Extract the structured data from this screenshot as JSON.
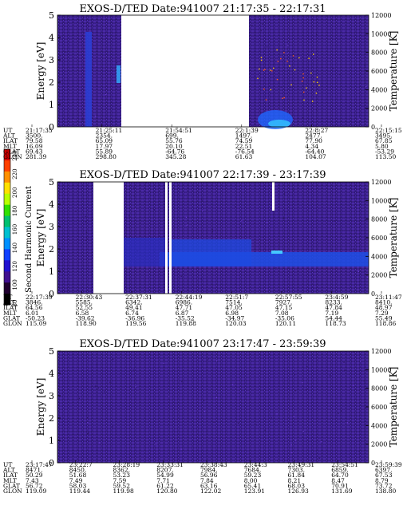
{
  "colors": {
    "background_spectrogram": "#3a1f8c",
    "accent_blue": "#1a55e8",
    "gap": "#ffffff"
  },
  "colorbar": {
    "label": "Second Harmonic Current",
    "ticks": [
      "240",
      "220",
      "200",
      "180",
      "160",
      "140",
      "120",
      "100",
      "80"
    ],
    "colors": [
      "#d00000",
      "#ff4000",
      "#ff9000",
      "#ffe000",
      "#b8ff00",
      "#30e000",
      "#00c070",
      "#00c0d0",
      "#0090ff",
      "#1040ff",
      "#2010d0",
      "#401090",
      "#200030",
      "#000000"
    ]
  },
  "chart_data": [
    {
      "type": "heatmap",
      "title": "EXOS-D/TED   Date:941007  21:17:35 - 22:17:31",
      "ylabel": "Energy [eV]",
      "y2label": "Temperature [K]",
      "ylim": [
        0,
        5
      ],
      "y2lim": [
        0,
        12000
      ],
      "yticks": [
        "0",
        "1",
        "2",
        "3",
        "4",
        "5"
      ],
      "y2ticks": [
        "0",
        "2000",
        "4000",
        "6000",
        "8000",
        "10000",
        "12000"
      ],
      "gaps_ut": [
        [
          "21:27:30",
          "21:54:51"
        ]
      ],
      "row_labels": [
        "UT",
        "ALT",
        "ILAT",
        "MLT",
        "GLAT",
        "GLON"
      ],
      "columns": [
        {
          "values": [
            "21:17:35",
            "3500.",
            "79.58",
            "16.09",
            "69.43",
            "281.39"
          ]
        },
        {
          "values": [
            "21:25:11",
            "2354.",
            "65.09",
            "17.97",
            "55.89",
            "298.80"
          ]
        },
        {
          "values": [
            "21:54:51",
            "699.",
            "55.76",
            "20.10",
            "-64.76",
            "345.28"
          ]
        },
        {
          "values": [
            "22:1:39",
            "1497.",
            "74.59",
            "22.51",
            "-76.54",
            "61.63"
          ]
        },
        {
          "values": [
            "22:8:27",
            "2477.",
            "77.90",
            "4.34",
            "-64.40",
            "104.07"
          ]
        },
        {
          "values": [
            "22:15:15",
            "3495.",
            "67.85",
            "5.80",
            "-53.29",
            "113.50"
          ]
        }
      ]
    },
    {
      "type": "heatmap",
      "title": "EXOS-D/TED   Date:941007  22:17:39 - 23:17:39",
      "ylabel": "Energy [eV]",
      "y2label": "Temperature [K]",
      "ylim": [
        0,
        5
      ],
      "y2lim": [
        0,
        12000
      ],
      "yticks": [
        "0",
        "1",
        "2",
        "3",
        "4",
        "5"
      ],
      "y2ticks": [
        "0",
        "2000",
        "4000",
        "6000",
        "8000",
        "10000",
        "12000"
      ],
      "row_labels": [
        "UT",
        "ALT",
        "ILAT",
        "MLT",
        "GLAT",
        "GLON"
      ],
      "columns": [
        {
          "values": [
            "22:17:39",
            "3846.",
            "64.56",
            "6.01",
            "-50.23",
            "115.09"
          ]
        },
        {
          "values": [
            "22:30:43",
            "5585.",
            "52.55",
            "6.58",
            "-39.62",
            "118.90"
          ]
        },
        {
          "values": [
            "22:37:31",
            "6342.",
            "49.41",
            "6.74",
            "-36.96",
            "119.56"
          ]
        },
        {
          "values": [
            "22:44:19",
            "6986.",
            "47.71",
            "6.87",
            "-35.52",
            "119.88"
          ]
        },
        {
          "values": [
            "22:51:7",
            "7514.",
            "47.05",
            "6.98",
            "-34.97",
            "120.03"
          ]
        },
        {
          "values": [
            "22:57:55",
            "7927.",
            "47.15",
            "7.08",
            "-35.06",
            "120.11"
          ]
        },
        {
          "values": [
            "23:4:59",
            "8233.",
            "47.84",
            "7.19",
            "54.44",
            "118.73"
          ]
        },
        {
          "values": [
            "23:11:47",
            "8410.",
            "48.97",
            "7.29",
            "55.49",
            "118.86"
          ]
        }
      ]
    },
    {
      "type": "heatmap",
      "title": "EXOS-D/TED   Date:941007  23:17:47 - 23:59:39",
      "ylabel": "Energy [eV]",
      "y2label": "Temperature [K]",
      "ylim": [
        0,
        5
      ],
      "y2lim": [
        0,
        12000
      ],
      "yticks": [
        "0",
        "1",
        "2",
        "3",
        "4",
        "5"
      ],
      "y2ticks": [
        "0",
        "2000",
        "4000",
        "6000",
        "8000",
        "10000",
        "12000"
      ],
      "row_labels": [
        "UT",
        "ALT",
        "ILAT",
        "MLT",
        "GLAT",
        "GLON"
      ],
      "columns": [
        {
          "values": [
            "23:17:47",
            "8471.",
            "50.29",
            "7.43",
            "56.72",
            "119.09"
          ]
        },
        {
          "values": [
            "23:22:7",
            "8450.",
            "51.68",
            "7.49",
            "58.03",
            "119.44"
          ]
        },
        {
          "values": [
            "23:28:19",
            "8362.",
            "53.23",
            "7.59",
            "59.52",
            "119.98"
          ]
        },
        {
          "values": [
            "23:33:31",
            "8207.",
            "54.99",
            "7.71",
            "61.22",
            "120.80"
          ]
        },
        {
          "values": [
            "23:38:43",
            "7984.",
            "56.96",
            "7.84",
            "63.16",
            "122.02"
          ]
        },
        {
          "values": [
            "23:44:3",
            "7684.",
            "59.23",
            "8.00",
            "65.41",
            "123.91"
          ]
        },
        {
          "values": [
            "23:49:31",
            "7303.",
            "61.84",
            "8.21",
            "68.03",
            "126.93"
          ]
        },
        {
          "values": [
            "23:54:51",
            "6859.",
            "64.70",
            "8.47",
            "70.91",
            "131.69"
          ]
        },
        {
          "values": [
            "23:59:39",
            "6397.",
            "67.53",
            "8.79",
            "73.72",
            "138.80"
          ]
        }
      ]
    }
  ]
}
